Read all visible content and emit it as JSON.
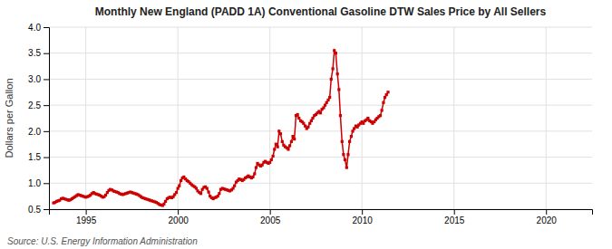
{
  "chart_data": {
    "type": "line",
    "title": "Monthly New England (PADD 1A) Conventional Gasoline DTW Sales Price by All Sellers",
    "ylabel": "Dollars per Gallon",
    "annotations": [
      "Source: U.S. Energy Information Administration"
    ],
    "color": "#cc0000",
    "marker": "square",
    "grid": true,
    "xlim": [
      1993.0,
      2022.5
    ],
    "ylim": [
      0.5,
      4.0
    ],
    "xticks": [
      1995,
      2000,
      2005,
      2010,
      2015,
      2020
    ],
    "yticks": [
      0.5,
      {
        "value": 1.0,
        "label": "1.0"
      },
      1.5,
      {
        "value": 2.0,
        "label": "2.0"
      },
      2.5,
      {
        "value": 3.0,
        "label": "3.0"
      },
      3.5,
      {
        "value": 4.0,
        "label": "4.0"
      }
    ],
    "x": [
      1993.25,
      1993.33,
      1993.42,
      1993.5,
      1993.58,
      1993.67,
      1993.75,
      1993.83,
      1993.92,
      1994.0,
      1994.08,
      1994.17,
      1994.25,
      1994.33,
      1994.42,
      1994.5,
      1994.58,
      1994.67,
      1994.75,
      1994.83,
      1994.92,
      1995.0,
      1995.08,
      1995.17,
      1995.25,
      1995.33,
      1995.42,
      1995.5,
      1995.58,
      1995.67,
      1995.75,
      1995.83,
      1995.92,
      1996.0,
      1996.08,
      1996.17,
      1996.25,
      1996.33,
      1996.42,
      1996.5,
      1996.58,
      1996.67,
      1996.75,
      1996.83,
      1996.92,
      1997.0,
      1997.08,
      1997.17,
      1997.25,
      1997.33,
      1997.42,
      1997.5,
      1997.58,
      1997.67,
      1997.75,
      1997.83,
      1997.92,
      1998.0,
      1998.08,
      1998.17,
      1998.25,
      1998.33,
      1998.42,
      1998.5,
      1998.58,
      1998.67,
      1998.75,
      1998.83,
      1998.92,
      1999.0,
      1999.08,
      1999.17,
      1999.25,
      1999.33,
      1999.42,
      1999.5,
      1999.58,
      1999.67,
      1999.75,
      1999.83,
      1999.92,
      2000.0,
      2000.08,
      2000.17,
      2000.25,
      2000.33,
      2000.42,
      2000.5,
      2000.58,
      2000.67,
      2000.75,
      2000.83,
      2000.92,
      2001.0,
      2001.08,
      2001.17,
      2001.25,
      2001.33,
      2001.42,
      2001.5,
      2001.58,
      2001.67,
      2001.75,
      2001.83,
      2001.92,
      2002.0,
      2002.08,
      2002.17,
      2002.25,
      2002.33,
      2002.42,
      2002.5,
      2002.58,
      2002.67,
      2002.75,
      2002.83,
      2002.92,
      2003.0,
      2003.08,
      2003.17,
      2003.25,
      2003.33,
      2003.42,
      2003.5,
      2003.58,
      2003.67,
      2003.75,
      2003.83,
      2003.92,
      2004.0,
      2004.08,
      2004.17,
      2004.25,
      2004.33,
      2004.42,
      2004.5,
      2004.58,
      2004.67,
      2004.75,
      2004.83,
      2004.92,
      2005.0,
      2005.08,
      2005.17,
      2005.25,
      2005.33,
      2005.42,
      2005.5,
      2005.58,
      2005.67,
      2005.75,
      2005.83,
      2005.92,
      2006.0,
      2006.08,
      2006.17,
      2006.25,
      2006.33,
      2006.42,
      2006.5,
      2006.58,
      2006.67,
      2006.75,
      2006.83,
      2006.92,
      2007.0,
      2007.08,
      2007.17,
      2007.25,
      2007.33,
      2007.42,
      2007.5,
      2007.58,
      2007.67,
      2007.75,
      2007.83,
      2007.92,
      2008.0,
      2008.08,
      2008.17,
      2008.25,
      2008.33,
      2008.42,
      2008.5,
      2008.58,
      2008.67,
      2008.75,
      2008.83,
      2008.92,
      2009.0,
      2009.08,
      2009.17,
      2009.25,
      2009.33,
      2009.42,
      2009.5,
      2009.58,
      2009.67,
      2009.75,
      2009.83,
      2009.92,
      2010.0,
      2010.08,
      2010.17,
      2010.25,
      2010.33,
      2010.42,
      2010.5,
      2010.58,
      2010.67,
      2010.75,
      2010.83,
      2010.92,
      2011.0,
      2011.08,
      2011.17,
      2011.25,
      2011.33,
      2011.42
    ],
    "values": [
      0.62,
      0.63,
      0.65,
      0.66,
      0.67,
      0.7,
      0.71,
      0.7,
      0.69,
      0.68,
      0.67,
      0.68,
      0.7,
      0.72,
      0.74,
      0.76,
      0.78,
      0.77,
      0.76,
      0.75,
      0.74,
      0.73,
      0.74,
      0.75,
      0.77,
      0.8,
      0.82,
      0.8,
      0.79,
      0.78,
      0.77,
      0.75,
      0.73,
      0.74,
      0.77,
      0.82,
      0.86,
      0.88,
      0.87,
      0.85,
      0.84,
      0.83,
      0.82,
      0.8,
      0.79,
      0.78,
      0.79,
      0.8,
      0.81,
      0.82,
      0.83,
      0.82,
      0.81,
      0.8,
      0.79,
      0.78,
      0.76,
      0.74,
      0.72,
      0.71,
      0.7,
      0.69,
      0.68,
      0.67,
      0.66,
      0.65,
      0.64,
      0.63,
      0.61,
      0.59,
      0.58,
      0.57,
      0.6,
      0.65,
      0.7,
      0.72,
      0.73,
      0.72,
      0.74,
      0.78,
      0.82,
      0.9,
      0.95,
      1.05,
      1.1,
      1.12,
      1.08,
      1.05,
      1.03,
      1.0,
      0.97,
      0.95,
      0.93,
      0.9,
      0.85,
      0.82,
      0.8,
      0.88,
      0.92,
      0.93,
      0.9,
      0.83,
      0.75,
      0.72,
      0.7,
      0.72,
      0.73,
      0.75,
      0.8,
      0.88,
      0.9,
      0.89,
      0.88,
      0.87,
      0.86,
      0.85,
      0.87,
      0.9,
      0.95,
      1.02,
      1.05,
      1.08,
      1.07,
      1.05,
      1.07,
      1.1,
      1.12,
      1.14,
      1.12,
      1.1,
      1.12,
      1.18,
      1.3,
      1.38,
      1.35,
      1.33,
      1.35,
      1.4,
      1.42,
      1.4,
      1.38,
      1.4,
      1.45,
      1.52,
      1.65,
      1.75,
      1.7,
      2.0,
      1.95,
      1.8,
      1.73,
      1.7,
      1.68,
      1.65,
      1.72,
      1.8,
      1.9,
      1.85,
      2.3,
      2.32,
      2.25,
      2.2,
      2.18,
      2.15,
      2.1,
      2.05,
      2.08,
      2.15,
      2.2,
      2.25,
      2.3,
      2.32,
      2.35,
      2.38,
      2.35,
      2.42,
      2.45,
      2.5,
      2.55,
      2.6,
      2.65,
      3.0,
      3.2,
      3.55,
      3.5,
      3.1,
      2.8,
      2.3,
      1.8,
      1.55,
      1.45,
      1.3,
      1.55,
      1.8,
      1.9,
      2.0,
      2.05,
      2.1,
      2.08,
      2.12,
      2.15,
      2.18,
      2.15,
      2.2,
      2.22,
      2.25,
      2.2,
      2.18,
      2.15,
      2.18,
      2.22,
      2.25,
      2.28,
      2.3,
      2.4,
      2.55,
      2.65,
      2.7,
      2.75
    ]
  }
}
